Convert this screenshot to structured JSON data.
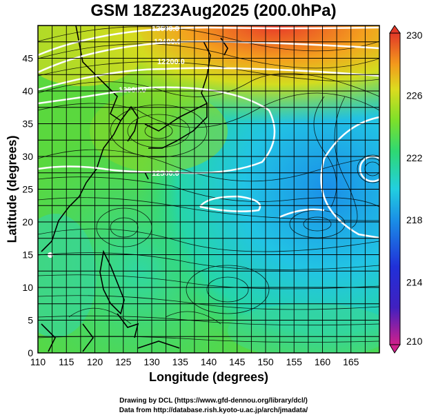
{
  "title": "GSM 18Z23Aug2025 (200.0hPa)",
  "x_axis": {
    "label": "Longitude (degrees)",
    "ticks": [
      "110",
      "115",
      "120",
      "125",
      "130",
      "135",
      "140",
      "145",
      "150",
      "155",
      "160",
      "165"
    ],
    "range": [
      110,
      170
    ]
  },
  "y_axis": {
    "label": "Latitude (degrees)",
    "ticks": [
      "0",
      "5",
      "10",
      "15",
      "20",
      "25",
      "30",
      "35",
      "40",
      "45"
    ],
    "range": [
      0,
      50
    ]
  },
  "colorbar": {
    "ticks": [
      "210",
      "214",
      "218",
      "222",
      "226",
      "230"
    ],
    "range": [
      210,
      230
    ],
    "colors": [
      "#d0208c",
      "#2020d0",
      "#1d8fe6",
      "#22cfe0",
      "#2ed873",
      "#78e02a",
      "#d9dc1f",
      "#f39a1c",
      "#e2382a"
    ]
  },
  "contour_labels": [
    "12600.0",
    "12400.0",
    "12200.0",
    "12000.0",
    "12500.0"
  ],
  "credits": {
    "line1": "Drawing by DCL (https://www.gfd-dennou.org/library/dcl/)",
    "line2": "Data from http://database.rish.kyoto-u.ac.jp/arch/jmadata/"
  }
}
